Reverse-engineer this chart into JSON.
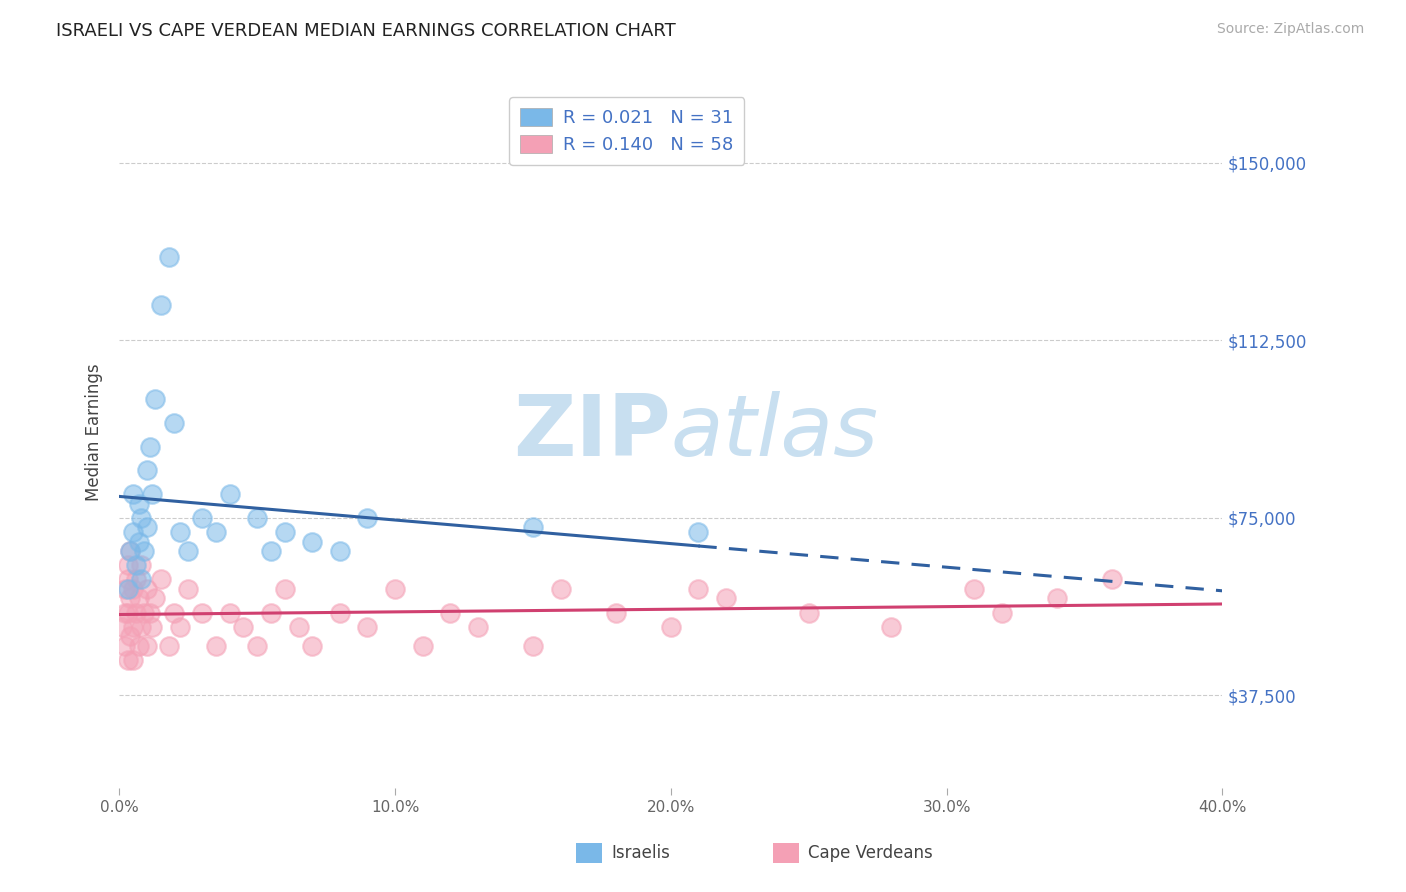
{
  "title": "ISRAELI VS CAPE VERDEAN MEDIAN EARNINGS CORRELATION CHART",
  "source": "Source: ZipAtlas.com",
  "ylabel": "Median Earnings",
  "xlim": [
    0.0,
    0.4
  ],
  "ylim": [
    18000,
    168000
  ],
  "yticks": [
    37500,
    75000,
    112500,
    150000
  ],
  "ytick_labels": [
    "$37,500",
    "$75,000",
    "$112,500",
    "$150,000"
  ],
  "xticks": [
    0.0,
    0.1,
    0.2,
    0.3,
    0.4
  ],
  "xtick_labels": [
    "0.0%",
    "10.0%",
    "20.0%",
    "30.0%",
    "40.0%"
  ],
  "legend_line1": "R = 0.021   N = 31",
  "legend_line2": "R = 0.140   N = 58",
  "color_israeli": "#7ab8e8",
  "color_cape_verdean": "#f4a0b5",
  "color_trend_israeli": "#3060a0",
  "color_trend_cape_verdean": "#d04070",
  "color_ytick_labels": "#4472c4",
  "color_grid": "#cccccc",
  "watermark_color": "#c8dff0",
  "israelis_x": [
    0.003,
    0.004,
    0.005,
    0.005,
    0.006,
    0.007,
    0.007,
    0.008,
    0.008,
    0.009,
    0.01,
    0.01,
    0.011,
    0.012,
    0.013,
    0.015,
    0.018,
    0.02,
    0.022,
    0.025,
    0.03,
    0.035,
    0.04,
    0.05,
    0.055,
    0.06,
    0.07,
    0.08,
    0.09,
    0.15,
    0.21
  ],
  "israelis_y": [
    60000,
    68000,
    72000,
    80000,
    65000,
    70000,
    78000,
    62000,
    75000,
    68000,
    85000,
    73000,
    90000,
    80000,
    100000,
    120000,
    130000,
    95000,
    72000,
    68000,
    75000,
    72000,
    80000,
    75000,
    68000,
    72000,
    70000,
    68000,
    75000,
    73000,
    72000
  ],
  "cape_verdeans_x": [
    0.001,
    0.002,
    0.002,
    0.002,
    0.003,
    0.003,
    0.003,
    0.003,
    0.004,
    0.004,
    0.004,
    0.005,
    0.005,
    0.005,
    0.006,
    0.006,
    0.007,
    0.007,
    0.008,
    0.008,
    0.009,
    0.01,
    0.01,
    0.011,
    0.012,
    0.013,
    0.015,
    0.018,
    0.02,
    0.022,
    0.025,
    0.03,
    0.035,
    0.04,
    0.045,
    0.05,
    0.055,
    0.06,
    0.065,
    0.07,
    0.08,
    0.09,
    0.1,
    0.11,
    0.12,
    0.13,
    0.15,
    0.16,
    0.18,
    0.2,
    0.21,
    0.22,
    0.25,
    0.28,
    0.31,
    0.32,
    0.34,
    0.36
  ],
  "cape_verdeans_y": [
    52000,
    55000,
    48000,
    60000,
    62000,
    45000,
    55000,
    65000,
    50000,
    58000,
    68000,
    52000,
    60000,
    45000,
    55000,
    62000,
    48000,
    58000,
    52000,
    65000,
    55000,
    48000,
    60000,
    55000,
    52000,
    58000,
    62000,
    48000,
    55000,
    52000,
    60000,
    55000,
    48000,
    55000,
    52000,
    48000,
    55000,
    60000,
    52000,
    48000,
    55000,
    52000,
    60000,
    48000,
    55000,
    52000,
    48000,
    60000,
    55000,
    52000,
    60000,
    58000,
    55000,
    52000,
    60000,
    55000,
    58000,
    62000
  ],
  "trend_israeli_solid_end": 0.21,
  "trend_solid_start": 0.0
}
